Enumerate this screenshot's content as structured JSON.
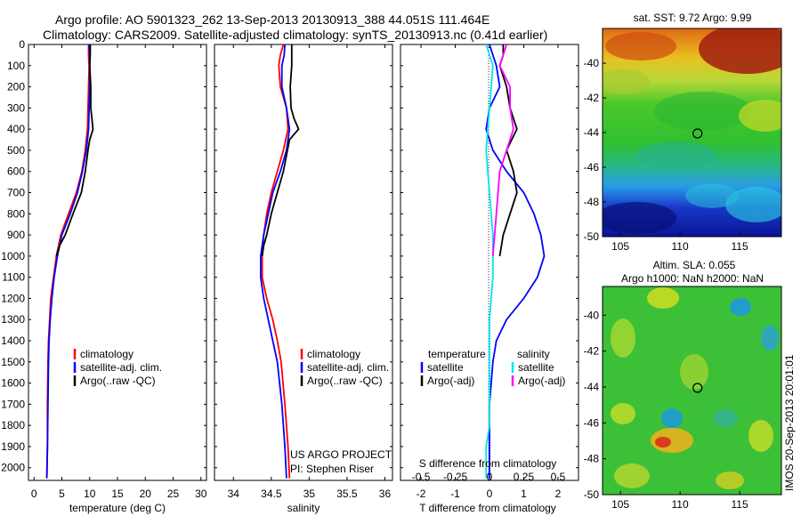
{
  "header": {
    "line1": "Argo profile: AO 5901323_262 13-Sep-2013 20130913_388 44.051S 111.464E",
    "line2": "Climatology: CARS2009. Satellite-adjusted climatology: synTS_20130913.nc (0.41d earlier)"
  },
  "credit": {
    "project": "US ARGO PROJECT",
    "pi": "PI: Stephen Riser",
    "imos": "IMOS 20-Sep-2013 20:01:01"
  },
  "colors": {
    "climatology": "#ff0000",
    "satellite": "#0000ff",
    "argo": "#000000",
    "sat_salinity": "#00e5ee",
    "argo_salinity": "#ff00ff"
  },
  "chart_data": [
    {
      "type": "line",
      "id": "temperature",
      "xlabel": "temperature (deg C)",
      "xlim": [
        -1,
        31
      ],
      "ylim": [
        2060,
        0
      ],
      "y_inverted": true,
      "xticks": [
        0,
        5,
        10,
        15,
        20,
        25,
        30
      ],
      "yticks": [
        0,
        100,
        200,
        300,
        400,
        500,
        600,
        700,
        800,
        900,
        1000,
        1100,
        1200,
        1300,
        1400,
        1500,
        1600,
        1700,
        1800,
        1900,
        2000
      ],
      "legend": [
        "climatology",
        "satellite-adj. clim.",
        "Argo(..raw -QC)"
      ],
      "series": [
        {
          "name": "climatology",
          "color": "#ff0000",
          "x": [
            9.8,
            9.8,
            9.9,
            9.8,
            9.7,
            9.6,
            9.2,
            8.6,
            7.6,
            6.2,
            4.8,
            4.0,
            3.5,
            3.0,
            2.8,
            2.6,
            2.5,
            2.4,
            2.4,
            2.3
          ],
          "y": [
            0,
            50,
            100,
            200,
            300,
            400,
            500,
            600,
            700,
            800,
            900,
            1000,
            1100,
            1200,
            1300,
            1400,
            1500,
            1700,
            1900,
            2050
          ]
        },
        {
          "name": "satellite-adj. clim.",
          "color": "#0000ff",
          "x": [
            9.9,
            10.0,
            10.0,
            10.0,
            9.9,
            9.8,
            9.4,
            8.7,
            7.8,
            6.5,
            5.0,
            4.2,
            3.6,
            3.2,
            2.9,
            2.7,
            2.6,
            2.5,
            2.4,
            2.3
          ],
          "y": [
            0,
            50,
            100,
            200,
            300,
            400,
            500,
            600,
            700,
            800,
            900,
            1000,
            1100,
            1200,
            1300,
            1400,
            1500,
            1700,
            1900,
            2050
          ]
        },
        {
          "name": "Argo(..raw -QC)",
          "color": "#000000",
          "x": [
            10.1,
            10.1,
            10.0,
            10.2,
            10.2,
            10.6,
            10.0,
            9.7,
            9.2,
            8.5,
            7.0,
            5.6,
            4.6,
            4.0
          ],
          "y": [
            0,
            50,
            100,
            200,
            300,
            400,
            450,
            500,
            600,
            700,
            800,
            900,
            950,
            1000
          ]
        }
      ]
    },
    {
      "type": "line",
      "id": "salinity",
      "xlabel": "salinity",
      "xlim": [
        33.75,
        36.1
      ],
      "ylim": [
        2060,
        0
      ],
      "y_inverted": true,
      "xticks": [
        34,
        34.5,
        35,
        35.5,
        36
      ],
      "xtick_labels": [
        "34",
        "34.5",
        "35",
        "35.5",
        "36"
      ],
      "legend": [
        "climatology",
        "satellite-adj. clim.",
        "Argo(..raw -QC)"
      ],
      "series": [
        {
          "name": "climatology",
          "color": "#ff0000",
          "x": [
            34.66,
            34.62,
            34.6,
            34.62,
            34.7,
            34.72,
            34.66,
            34.58,
            34.5,
            34.44,
            34.4,
            34.38,
            34.38,
            34.44,
            34.52,
            34.58,
            34.63,
            34.68,
            34.72,
            34.74
          ],
          "y": [
            0,
            50,
            100,
            200,
            300,
            400,
            500,
            600,
            700,
            800,
            900,
            1000,
            1100,
            1200,
            1300,
            1400,
            1500,
            1700,
            1900,
            2050
          ]
        },
        {
          "name": "satellite-adj. clim.",
          "color": "#0000ff",
          "x": [
            34.68,
            34.67,
            34.64,
            34.64,
            34.7,
            34.74,
            34.7,
            34.62,
            34.52,
            34.46,
            34.4,
            34.36,
            34.36,
            34.4,
            34.46,
            34.52,
            34.58,
            34.64,
            34.68,
            34.7
          ],
          "y": [
            0,
            50,
            100,
            200,
            300,
            400,
            500,
            600,
            700,
            800,
            900,
            1000,
            1100,
            1200,
            1300,
            1400,
            1500,
            1700,
            1900,
            2050
          ]
        },
        {
          "name": "Argo(..raw -QC)",
          "color": "#000000",
          "x": [
            34.77,
            34.77,
            34.77,
            34.75,
            34.76,
            34.8,
            34.86,
            34.74,
            34.66,
            34.58,
            34.5,
            34.44,
            34.4,
            34.38
          ],
          "y": [
            0,
            50,
            100,
            200,
            300,
            350,
            400,
            450,
            600,
            700,
            800,
            900,
            950,
            1000
          ]
        }
      ]
    },
    {
      "type": "line",
      "id": "difference",
      "xlabel": "T difference from climatology",
      "xlabel_top": "S difference from climatology",
      "xlim": [
        -2.6,
        2.6
      ],
      "ylim": [
        2060,
        0
      ],
      "y_inverted": true,
      "xticks": [
        -2,
        -1,
        0,
        1,
        2
      ],
      "xtick_labels": [
        "-2",
        "-1",
        "0",
        "1",
        "2"
      ],
      "s_ticks": [
        "-0.5",
        "-0.25",
        "0",
        "0.25",
        "0.5"
      ],
      "legend_temperature": [
        "temperature",
        "satellite",
        "Argo(-adj)"
      ],
      "legend_salinity": [
        "salinity",
        "satellite",
        "Argo(-adj)"
      ],
      "series": [
        {
          "name": "satellite",
          "color": "#0000ff",
          "x": [
            0.0,
            0.1,
            0.2,
            0.3,
            0.0,
            -0.1,
            0.1,
            0.5,
            1.0,
            1.3,
            1.5,
            1.6,
            1.4,
            1.0,
            0.5,
            0.2,
            0.1,
            0.0,
            0.0,
            0.0
          ],
          "y": [
            0,
            50,
            100,
            200,
            300,
            400,
            500,
            600,
            700,
            800,
            900,
            1000,
            1100,
            1200,
            1300,
            1400,
            1500,
            1700,
            1900,
            2050
          ]
        },
        {
          "name": "Argo(-adj)",
          "color": "#000000",
          "x": [
            0.4,
            0.4,
            0.3,
            0.5,
            0.6,
            0.8,
            0.5,
            0.7,
            0.8,
            0.6,
            0.4,
            0.3
          ],
          "y": [
            0,
            50,
            100,
            200,
            300,
            400,
            500,
            600,
            700,
            800,
            900,
            1000
          ]
        },
        {
          "name": "satellite",
          "color": "#00e5ee",
          "x": [
            -0.1,
            0.0,
            0.1,
            0.0,
            -0.1,
            0.0,
            0.1,
            0.1,
            0.0,
            0.0,
            0.0,
            0.0,
            -0.1,
            -0.1
          ],
          "y": [
            0,
            50,
            100,
            300,
            500,
            700,
            900,
            1100,
            1300,
            1500,
            1700,
            1800,
            1900,
            2050
          ]
        },
        {
          "name": "Argo(-adj)",
          "color": "#ff00ff",
          "x": [
            0.5,
            0.4,
            0.3,
            0.6,
            0.6,
            0.7,
            0.5,
            0.3,
            0.2,
            0.1
          ],
          "y": [
            0,
            50,
            100,
            200,
            300,
            400,
            500,
            600,
            800,
            1000
          ]
        }
      ]
    },
    {
      "type": "heatmap",
      "id": "sst_map",
      "title": "sat. SST: 9.72 Argo: 9.99",
      "xlim": [
        103.5,
        118.5
      ],
      "ylim": [
        -50,
        -38
      ],
      "xticks": [
        105,
        110,
        115
      ],
      "yticks": [
        -40,
        -42,
        -44,
        -46,
        -48,
        -50
      ],
      "ytick_labels": [
        "-40",
        "-42",
        "-44",
        "-46",
        "-48",
        "-50"
      ],
      "marker": {
        "lon": 111.464,
        "lat": -44.051
      }
    },
    {
      "type": "heatmap",
      "id": "sla_map",
      "title": "Altim. SLA: 0.055",
      "subtitle": "Argo h1000: NaN h2000: NaN",
      "xlim": [
        103.5,
        118.5
      ],
      "ylim": [
        -50,
        -38.4
      ],
      "xticks": [
        105,
        110,
        115
      ],
      "yticks": [
        -40,
        -42,
        -44,
        -46,
        -48,
        -50
      ],
      "ytick_labels": [
        "-40",
        "-42",
        "-44",
        "-46",
        "-48",
        "-50"
      ],
      "marker": {
        "lon": 111.464,
        "lat": -44.051
      }
    }
  ]
}
